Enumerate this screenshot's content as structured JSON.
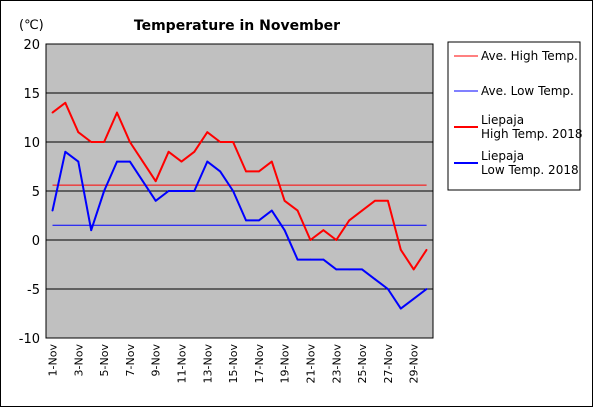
{
  "chart_data": {
    "type": "line",
    "title": "Temperature in November",
    "unit_label": "(℃)",
    "ylim": [
      -10,
      20
    ],
    "yticks": [
      -10,
      -5,
      0,
      5,
      10,
      15,
      20
    ],
    "grid": "horizontal",
    "legend_position": "right",
    "background": "#c0c0c0",
    "x": [
      "1-Nov",
      "2-Nov",
      "3-Nov",
      "4-Nov",
      "5-Nov",
      "6-Nov",
      "7-Nov",
      "8-Nov",
      "9-Nov",
      "10-Nov",
      "11-Nov",
      "12-Nov",
      "13-Nov",
      "14-Nov",
      "15-Nov",
      "16-Nov",
      "17-Nov",
      "18-Nov",
      "19-Nov",
      "20-Nov",
      "21-Nov",
      "22-Nov",
      "23-Nov",
      "24-Nov",
      "25-Nov",
      "26-Nov",
      "27-Nov",
      "28-Nov",
      "29-Nov",
      "30-Nov"
    ],
    "xtick_labels": [
      "1-Nov",
      "3-Nov",
      "5-Nov",
      "7-Nov",
      "9-Nov",
      "11-Nov",
      "13-Nov",
      "15-Nov",
      "17-Nov",
      "19-Nov",
      "21-Nov",
      "23-Nov",
      "25-Nov",
      "27-Nov",
      "29-Nov"
    ],
    "series": [
      {
        "name": "Ave. High Temp.",
        "style": "thin",
        "color": "#ff0000",
        "values": [
          5.6,
          5.6,
          5.6,
          5.6,
          5.6,
          5.6,
          5.6,
          5.6,
          5.6,
          5.6,
          5.6,
          5.6,
          5.6,
          5.6,
          5.6,
          5.6,
          5.6,
          5.6,
          5.6,
          5.6,
          5.6,
          5.6,
          5.6,
          5.6,
          5.6,
          5.6,
          5.6,
          5.6,
          5.6,
          5.6
        ]
      },
      {
        "name": "Ave. Low Temp.",
        "style": "thin",
        "color": "#0000ff",
        "values": [
          1.5,
          1.5,
          1.5,
          1.5,
          1.5,
          1.5,
          1.5,
          1.5,
          1.5,
          1.5,
          1.5,
          1.5,
          1.5,
          1.5,
          1.5,
          1.5,
          1.5,
          1.5,
          1.5,
          1.5,
          1.5,
          1.5,
          1.5,
          1.5,
          1.5,
          1.5,
          1.5,
          1.5,
          1.5,
          1.5
        ]
      },
      {
        "name": "Liepaja High Temp. 2018",
        "name_lines": [
          "Liepaja",
          "High Temp. 2018"
        ],
        "style": "thick",
        "color": "#ff0000",
        "values": [
          13,
          14,
          11,
          10,
          10,
          13,
          10,
          8,
          6,
          9,
          8,
          9,
          11,
          10,
          10,
          7,
          7,
          8,
          4,
          3,
          0,
          1,
          0,
          2,
          3,
          4,
          4,
          -1,
          -3,
          -1
        ]
      },
      {
        "name": "Liepaja Low Temp. 2018",
        "name_lines": [
          "Liepaja",
          "Low Temp. 2018"
        ],
        "style": "thick",
        "color": "#0000ff",
        "values": [
          3,
          9,
          8,
          1,
          5,
          8,
          8,
          6,
          4,
          5,
          5,
          5,
          8,
          7,
          5,
          2,
          2,
          3,
          1,
          -2,
          -2,
          -2,
          -3,
          -3,
          -3,
          -4,
          -5,
          -7,
          -6,
          -5
        ]
      }
    ]
  }
}
